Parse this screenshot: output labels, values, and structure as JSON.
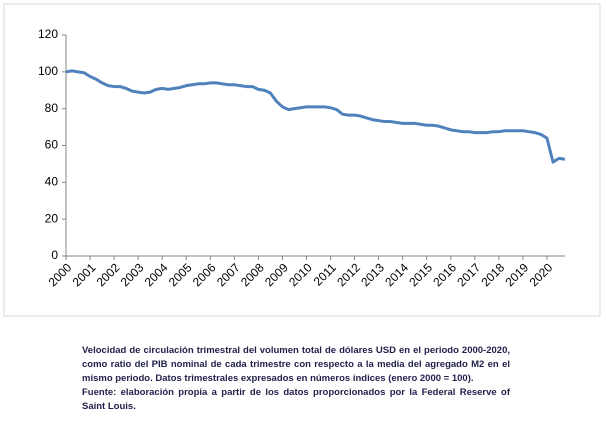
{
  "chart_data": {
    "type": "line",
    "categories": [
      "2000",
      null,
      null,
      null,
      "2001",
      null,
      null,
      null,
      "2002",
      null,
      null,
      null,
      "2003",
      null,
      null,
      null,
      "2004",
      null,
      null,
      null,
      "2005",
      null,
      null,
      null,
      "2006",
      null,
      null,
      null,
      "2007",
      null,
      null,
      null,
      "2008",
      null,
      null,
      null,
      "2009",
      null,
      null,
      null,
      "2010",
      null,
      null,
      null,
      "2011",
      null,
      null,
      null,
      "2012",
      null,
      null,
      null,
      "2013",
      null,
      null,
      null,
      "2014",
      null,
      null,
      null,
      "2015",
      null,
      null,
      null,
      "2016",
      null,
      null,
      null,
      "2017",
      null,
      null,
      null,
      "2018",
      null,
      null,
      null,
      "2019",
      null,
      null,
      null,
      "2020",
      null,
      null,
      null
    ],
    "series": [
      {
        "color": "#4f81bd",
        "values": [
          100,
          100.5,
          100,
          99.5,
          97.5,
          96,
          94,
          92.5,
          92,
          92,
          91,
          89.5,
          89,
          88.5,
          89,
          90.5,
          91,
          90.5,
          91,
          91.5,
          92.5,
          93,
          93.5,
          93.5,
          94,
          94,
          93.5,
          93,
          93,
          92.5,
          92,
          92,
          90.5,
          90,
          88.5,
          84,
          81,
          79.5,
          80,
          80.5,
          81,
          81,
          81,
          81,
          80.5,
          79.5,
          77,
          76.5,
          76.5,
          76,
          75,
          74,
          73.5,
          73,
          73,
          72.5,
          72,
          72,
          72,
          71.5,
          71,
          71,
          70.5,
          69.5,
          68.5,
          68,
          67.5,
          67.5,
          67,
          67,
          67,
          67.5,
          67.5,
          68,
          68,
          68,
          68,
          67.5,
          67,
          66,
          64,
          51,
          53,
          52.5
        ]
      }
    ],
    "ylim": [
      0,
      120
    ],
    "yticks": [
      0,
      20,
      40,
      60,
      80,
      100,
      120
    ],
    "grid": false,
    "caption": [
      "Velocidad de circulación trimestral del volumen total de dólares USD en el periodo 2000-2020, como ratio del PIB nominal de cada trimestre con respecto a la media del agregado M2 en el mismo periodo. Datos trimestrales expresados en números índices (enero 2000 = 100).",
      "Fuente: elaboración propia a partir de los datos proporcionados por la Federal Reserve of Saint Louis."
    ]
  }
}
